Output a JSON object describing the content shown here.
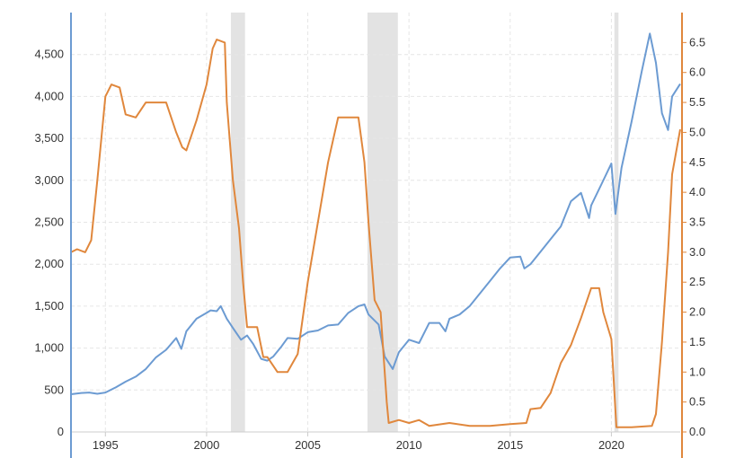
{
  "chart_data": {
    "type": "line",
    "title": "",
    "xlabel": "",
    "ylabel_left": "",
    "ylabel_right": "",
    "x_range": [
      1993.3,
      2023.4
    ],
    "x_ticks": [
      1995,
      2000,
      2005,
      2010,
      2015,
      2020
    ],
    "x_tick_labels": [
      "1995",
      "2000",
      "2005",
      "2010",
      "2015",
      "2020"
    ],
    "ylim_left": [
      0,
      5000
    ],
    "y_ticks_left": [
      0,
      500,
      1000,
      1500,
      2000,
      2500,
      3000,
      3500,
      4000,
      4500
    ],
    "y_tick_labels_left": [
      "0",
      "500",
      "1,000",
      "1,500",
      "2,000",
      "2,500",
      "3,000",
      "3,500",
      "4,000",
      "4,500"
    ],
    "ylim_right": [
      0,
      7.0
    ],
    "y_ticks_right": [
      0,
      0.5,
      1.0,
      1.5,
      2.0,
      2.5,
      3.0,
      3.5,
      4.0,
      4.5,
      5.0,
      5.5,
      6.0,
      6.5
    ],
    "y_tick_labels_right": [
      "0.0",
      "0.5",
      "1.0",
      "1.5",
      "2.0",
      "2.5",
      "3.0",
      "3.5",
      "4.0",
      "4.5",
      "5.0",
      "5.5",
      "6.0",
      "6.5"
    ],
    "grid": true,
    "legend": "none",
    "recessions": [
      [
        2001.2,
        2001.9
      ],
      [
        2007.95,
        2009.45
      ],
      [
        2020.15,
        2020.35
      ]
    ],
    "series": [
      {
        "axis": "left",
        "color": "#6c9bd2",
        "points": [
          [
            1993.3,
            450
          ],
          [
            1993.8,
            465
          ],
          [
            1994.2,
            470
          ],
          [
            1994.6,
            455
          ],
          [
            1995.0,
            470
          ],
          [
            1995.5,
            530
          ],
          [
            1996.0,
            600
          ],
          [
            1996.5,
            660
          ],
          [
            1997.0,
            750
          ],
          [
            1997.5,
            890
          ],
          [
            1998.0,
            980
          ],
          [
            1998.5,
            1120
          ],
          [
            1998.75,
            990
          ],
          [
            1999.0,
            1200
          ],
          [
            1999.5,
            1350
          ],
          [
            2000.0,
            1420
          ],
          [
            2000.2,
            1450
          ],
          [
            2000.5,
            1440
          ],
          [
            2000.7,
            1500
          ],
          [
            2001.0,
            1350
          ],
          [
            2001.3,
            1240
          ],
          [
            2001.7,
            1100
          ],
          [
            2002.0,
            1150
          ],
          [
            2002.3,
            1050
          ],
          [
            2002.7,
            870
          ],
          [
            2003.0,
            850
          ],
          [
            2003.3,
            900
          ],
          [
            2003.7,
            1020
          ],
          [
            2004.0,
            1120
          ],
          [
            2004.5,
            1110
          ],
          [
            2005.0,
            1190
          ],
          [
            2005.5,
            1210
          ],
          [
            2006.0,
            1270
          ],
          [
            2006.5,
            1280
          ],
          [
            2007.0,
            1420
          ],
          [
            2007.5,
            1500
          ],
          [
            2007.8,
            1520
          ],
          [
            2008.0,
            1400
          ],
          [
            2008.5,
            1280
          ],
          [
            2008.8,
            900
          ],
          [
            2009.2,
            750
          ],
          [
            2009.5,
            950
          ],
          [
            2010.0,
            1100
          ],
          [
            2010.5,
            1060
          ],
          [
            2011.0,
            1300
          ],
          [
            2011.5,
            1300
          ],
          [
            2011.8,
            1200
          ],
          [
            2012.0,
            1350
          ],
          [
            2012.5,
            1400
          ],
          [
            2013.0,
            1500
          ],
          [
            2013.5,
            1650
          ],
          [
            2014.0,
            1800
          ],
          [
            2014.5,
            1950
          ],
          [
            2015.0,
            2080
          ],
          [
            2015.5,
            2090
          ],
          [
            2015.7,
            1950
          ],
          [
            2016.0,
            2000
          ],
          [
            2016.5,
            2150
          ],
          [
            2017.0,
            2300
          ],
          [
            2017.5,
            2450
          ],
          [
            2018.0,
            2750
          ],
          [
            2018.5,
            2850
          ],
          [
            2018.9,
            2550
          ],
          [
            2019.0,
            2700
          ],
          [
            2019.5,
            2950
          ],
          [
            2020.0,
            3200
          ],
          [
            2020.2,
            2600
          ],
          [
            2020.5,
            3150
          ],
          [
            2021.0,
            3700
          ],
          [
            2021.5,
            4300
          ],
          [
            2021.9,
            4750
          ],
          [
            2022.2,
            4400
          ],
          [
            2022.5,
            3800
          ],
          [
            2022.8,
            3600
          ],
          [
            2023.0,
            4000
          ],
          [
            2023.4,
            4150
          ]
        ]
      },
      {
        "axis": "right",
        "color": "#e0873c",
        "points": [
          [
            1993.3,
            3.0
          ],
          [
            1993.6,
            3.05
          ],
          [
            1994.0,
            3.0
          ],
          [
            1994.3,
            3.2
          ],
          [
            1994.6,
            4.2
          ],
          [
            1995.0,
            5.6
          ],
          [
            1995.3,
            5.8
          ],
          [
            1995.7,
            5.75
          ],
          [
            1996.0,
            5.3
          ],
          [
            1996.5,
            5.25
          ],
          [
            1997.0,
            5.5
          ],
          [
            1997.5,
            5.5
          ],
          [
            1998.0,
            5.5
          ],
          [
            1998.5,
            5.0
          ],
          [
            1998.8,
            4.75
          ],
          [
            1999.0,
            4.7
          ],
          [
            1999.5,
            5.2
          ],
          [
            2000.0,
            5.8
          ],
          [
            2000.3,
            6.4
          ],
          [
            2000.5,
            6.55
          ],
          [
            2000.9,
            6.5
          ],
          [
            2001.0,
            5.5
          ],
          [
            2001.3,
            4.2
          ],
          [
            2001.6,
            3.4
          ],
          [
            2001.8,
            2.5
          ],
          [
            2002.0,
            1.75
          ],
          [
            2002.5,
            1.75
          ],
          [
            2002.8,
            1.25
          ],
          [
            2003.0,
            1.25
          ],
          [
            2003.5,
            1.0
          ],
          [
            2004.0,
            1.0
          ],
          [
            2004.5,
            1.3
          ],
          [
            2005.0,
            2.5
          ],
          [
            2005.5,
            3.5
          ],
          [
            2006.0,
            4.5
          ],
          [
            2006.5,
            5.25
          ],
          [
            2007.0,
            5.25
          ],
          [
            2007.5,
            5.25
          ],
          [
            2007.8,
            4.5
          ],
          [
            2008.0,
            3.5
          ],
          [
            2008.3,
            2.2
          ],
          [
            2008.6,
            2.0
          ],
          [
            2008.9,
            0.5
          ],
          [
            2009.0,
            0.15
          ],
          [
            2009.5,
            0.2
          ],
          [
            2010.0,
            0.15
          ],
          [
            2010.5,
            0.2
          ],
          [
            2011.0,
            0.1
          ],
          [
            2012.0,
            0.15
          ],
          [
            2013.0,
            0.1
          ],
          [
            2014.0,
            0.1
          ],
          [
            2015.0,
            0.13
          ],
          [
            2015.8,
            0.15
          ],
          [
            2016.0,
            0.38
          ],
          [
            2016.5,
            0.4
          ],
          [
            2017.0,
            0.65
          ],
          [
            2017.5,
            1.15
          ],
          [
            2018.0,
            1.45
          ],
          [
            2018.5,
            1.9
          ],
          [
            2019.0,
            2.4
          ],
          [
            2019.4,
            2.4
          ],
          [
            2019.6,
            2.0
          ],
          [
            2020.0,
            1.55
          ],
          [
            2020.15,
            0.65
          ],
          [
            2020.25,
            0.08
          ],
          [
            2021.0,
            0.08
          ],
          [
            2022.0,
            0.1
          ],
          [
            2022.2,
            0.3
          ],
          [
            2022.5,
            1.5
          ],
          [
            2022.8,
            3.0
          ],
          [
            2023.0,
            4.3
          ],
          [
            2023.4,
            5.05
          ]
        ]
      }
    ]
  }
}
